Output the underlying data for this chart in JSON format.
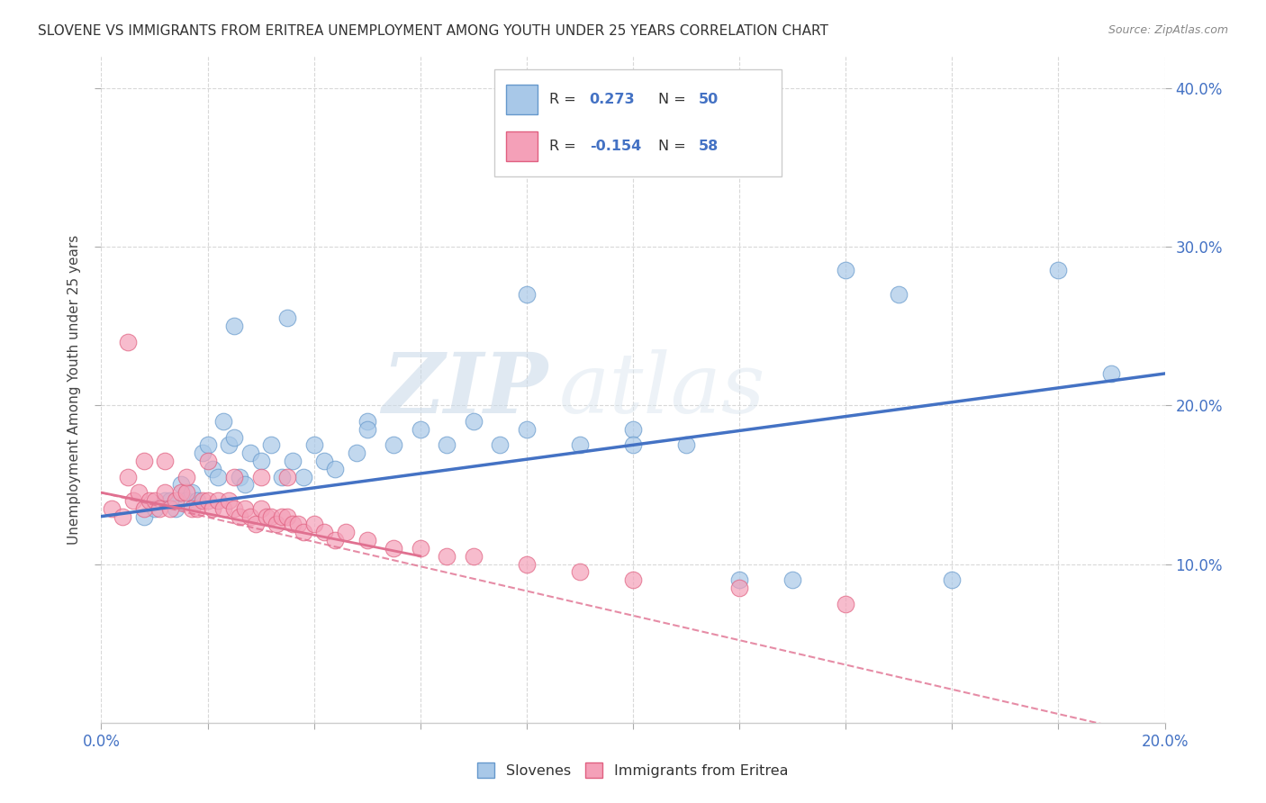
{
  "title": "SLOVENE VS IMMIGRANTS FROM ERITREA UNEMPLOYMENT AMONG YOUTH UNDER 25 YEARS CORRELATION CHART",
  "source": "Source: ZipAtlas.com",
  "ylabel": "Unemployment Among Youth under 25 years",
  "legend_labels": [
    "Slovenes",
    "Immigrants from Eritrea"
  ],
  "watermark_zip": "ZIP",
  "watermark_atlas": "atlas",
  "blue_color": "#a8c8e8",
  "pink_color": "#f4a0b8",
  "blue_edge_color": "#6699cc",
  "pink_edge_color": "#e06080",
  "blue_line_color": "#4472c4",
  "pink_line_color": "#e07090",
  "r_blue": 0.273,
  "r_pink": -0.154,
  "n_blue": 50,
  "n_pink": 58,
  "xlim": [
    0.0,
    0.2
  ],
  "ylim": [
    0.0,
    0.42
  ],
  "background_color": "#ffffff",
  "grid_color": "#d8d8d8",
  "blue_scatter_x": [
    0.008,
    0.01,
    0.012,
    0.013,
    0.014,
    0.015,
    0.016,
    0.017,
    0.018,
    0.019,
    0.02,
    0.021,
    0.022,
    0.023,
    0.024,
    0.025,
    0.026,
    0.027,
    0.028,
    0.03,
    0.032,
    0.034,
    0.036,
    0.038,
    0.04,
    0.042,
    0.044,
    0.048,
    0.05,
    0.055,
    0.06,
    0.065,
    0.07,
    0.075,
    0.08,
    0.09,
    0.1,
    0.11,
    0.12,
    0.13,
    0.14,
    0.16,
    0.18,
    0.025,
    0.035,
    0.05,
    0.08,
    0.1,
    0.15,
    0.19
  ],
  "blue_scatter_y": [
    0.13,
    0.135,
    0.14,
    0.14,
    0.135,
    0.15,
    0.14,
    0.145,
    0.14,
    0.17,
    0.175,
    0.16,
    0.155,
    0.19,
    0.175,
    0.18,
    0.155,
    0.15,
    0.17,
    0.165,
    0.175,
    0.155,
    0.165,
    0.155,
    0.175,
    0.165,
    0.16,
    0.17,
    0.19,
    0.175,
    0.185,
    0.175,
    0.19,
    0.175,
    0.185,
    0.175,
    0.185,
    0.175,
    0.09,
    0.09,
    0.285,
    0.09,
    0.285,
    0.25,
    0.255,
    0.185,
    0.27,
    0.175,
    0.27,
    0.22
  ],
  "pink_scatter_x": [
    0.002,
    0.004,
    0.005,
    0.006,
    0.007,
    0.008,
    0.009,
    0.01,
    0.011,
    0.012,
    0.013,
    0.014,
    0.015,
    0.016,
    0.017,
    0.018,
    0.019,
    0.02,
    0.021,
    0.022,
    0.023,
    0.024,
    0.025,
    0.026,
    0.027,
    0.028,
    0.029,
    0.03,
    0.031,
    0.032,
    0.033,
    0.034,
    0.035,
    0.036,
    0.037,
    0.038,
    0.04,
    0.042,
    0.044,
    0.046,
    0.05,
    0.055,
    0.06,
    0.065,
    0.07,
    0.08,
    0.09,
    0.1,
    0.12,
    0.14,
    0.005,
    0.008,
    0.012,
    0.016,
    0.02,
    0.025,
    0.03,
    0.035
  ],
  "pink_scatter_y": [
    0.135,
    0.13,
    0.155,
    0.14,
    0.145,
    0.135,
    0.14,
    0.14,
    0.135,
    0.145,
    0.135,
    0.14,
    0.145,
    0.145,
    0.135,
    0.135,
    0.14,
    0.14,
    0.135,
    0.14,
    0.135,
    0.14,
    0.135,
    0.13,
    0.135,
    0.13,
    0.125,
    0.135,
    0.13,
    0.13,
    0.125,
    0.13,
    0.13,
    0.125,
    0.125,
    0.12,
    0.125,
    0.12,
    0.115,
    0.12,
    0.115,
    0.11,
    0.11,
    0.105,
    0.105,
    0.1,
    0.095,
    0.09,
    0.085,
    0.075,
    0.24,
    0.165,
    0.165,
    0.155,
    0.165,
    0.155,
    0.155,
    0.155
  ]
}
